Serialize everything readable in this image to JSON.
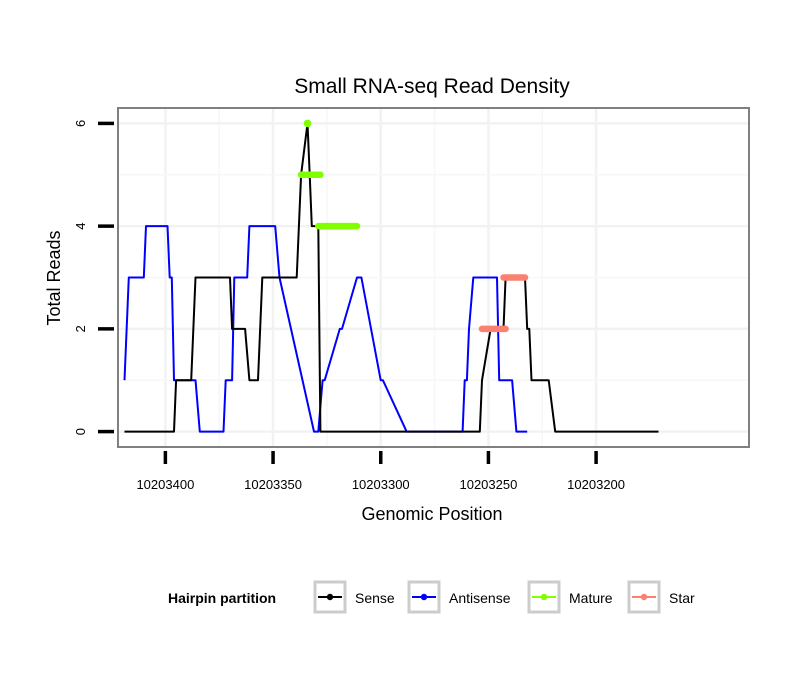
{
  "chart_data": {
    "type": "line",
    "title": "Small RNA-seq Read Density",
    "xlabel": "Genomic Position",
    "ylabel": "Total Reads",
    "xlim": [
      10203129,
      10203422
    ],
    "ylim": [
      -0.3,
      6.3
    ],
    "x_reversed": true,
    "x_ticks": [
      10203400,
      10203350,
      10203300,
      10203250,
      10203200
    ],
    "x_tick_labels": [
      "10203400",
      "10203350",
      "10203300",
      "10203250",
      "10203200"
    ],
    "y_ticks": [
      0,
      2,
      4,
      6
    ],
    "y_tick_labels": [
      "0",
      "2",
      "4",
      "6"
    ],
    "grid": true,
    "legend": {
      "title": "Hairpin partition",
      "position": "bottom",
      "entries": [
        {
          "name": "Sense",
          "color": "#000000"
        },
        {
          "name": "Antisense",
          "color": "#0000ff"
        },
        {
          "name": "Mature",
          "color": "#7fff00"
        },
        {
          "name": "Star",
          "color": "#fa8072"
        }
      ]
    },
    "series": [
      {
        "name": "Antisense",
        "color": "#0000ff",
        "x": [
          10203419,
          10203417,
          10203416,
          10203410,
          10203409,
          10203399,
          10203398,
          10203397,
          10203396,
          10203386,
          10203384,
          10203373,
          10203372,
          10203369,
          10203368,
          10203362,
          10203361,
          10203349,
          10203347,
          10203331,
          10203330,
          10203329,
          10203327,
          10203326,
          10203319,
          10203318,
          10203311,
          10203309,
          10203300,
          10203299,
          10203288,
          10203287,
          10203281,
          10203280,
          10203273,
          10203271,
          10203264,
          10203262,
          10203261,
          10203260,
          10203259,
          10203257,
          10203246,
          10203245,
          10203240,
          10203239,
          10203237,
          10203232
        ],
        "y": [
          1,
          3,
          3,
          3,
          4,
          4,
          3,
          3,
          1,
          1,
          0,
          0,
          1,
          1,
          3,
          3,
          4,
          4,
          3,
          0,
          0,
          0,
          1,
          1,
          2,
          2,
          3,
          3,
          1,
          1,
          0,
          0,
          0,
          0,
          0,
          0,
          0,
          0,
          1,
          1,
          2,
          3,
          3,
          1,
          1,
          1,
          0,
          0
        ]
      },
      {
        "name": "Sense",
        "color": "#000000",
        "x": [
          10203419,
          10203396,
          10203395,
          10203388,
          10203386,
          10203370,
          10203369,
          10203363,
          10203361,
          10203357,
          10203355,
          10203339,
          10203337,
          10203334,
          10203333,
          10203332,
          10203331,
          10203329,
          10203328,
          10203313,
          10203311,
          10203308,
          10203307,
          10203294,
          10203293,
          10203254,
          10203253,
          10203249,
          10203243,
          10203242,
          10203240,
          10203233,
          10203232,
          10203231,
          10203230,
          10203223,
          10203222,
          10203219,
          10203171
        ],
        "y": [
          0,
          0,
          1,
          1,
          3,
          3,
          2,
          2,
          1,
          1,
          3,
          3,
          5,
          6,
          5,
          4,
          4,
          4,
          0,
          0,
          0,
          0,
          0,
          0,
          0,
          0,
          1,
          2,
          2,
          3,
          3,
          3,
          2,
          2,
          1,
          1,
          1,
          0,
          0
        ]
      }
    ],
    "segments": [
      {
        "name": "Mature",
        "color": "#7fff00",
        "x0": 10203337,
        "x1": 10203328,
        "y": 5
      },
      {
        "name": "Mature",
        "color": "#7fff00",
        "x0": 10203329,
        "x1": 10203311,
        "y": 4
      },
      {
        "name": "Star",
        "color": "#fa8072",
        "x0": 10203253,
        "x1": 10203242,
        "y": 2
      },
      {
        "name": "Star",
        "color": "#fa8072",
        "x0": 10203243,
        "x1": 10203233,
        "y": 3
      }
    ],
    "points": [
      {
        "name": "Mature",
        "color": "#7fff00",
        "x": 10203334,
        "y": 6
      }
    ]
  }
}
